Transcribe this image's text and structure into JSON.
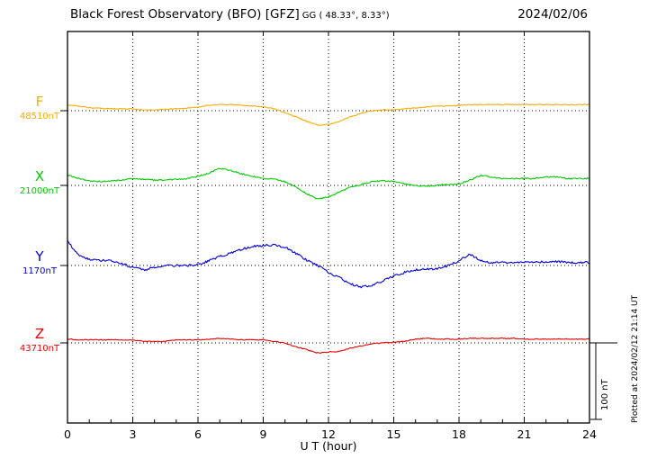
{
  "header": {
    "title": "Black Forest Observatory (BFO)  [GFZ]",
    "subtitle": "GG ( 48.33°,  8.33°)",
    "date": "2024/02/06"
  },
  "footer": {
    "plotted": "Plotted at 2024/02/12 21:14 UT"
  },
  "scalebar": {
    "label": "100 nT",
    "nT": 100
  },
  "chart_data": {
    "type": "line",
    "title": "Black Forest Observatory (BFO) [GFZ] magnetogram 2024/02/06",
    "xlabel": "U T (hour)",
    "xlim": [
      0,
      24
    ],
    "x_ticks": [
      0,
      3,
      6,
      9,
      12,
      15,
      18,
      21,
      24
    ],
    "x_step_hours": 0.5,
    "grid": "dotted vertical gridlines at 3h intervals, dotted horizontal baseline per component",
    "scale_nT_per_div": 100,
    "series": [
      {
        "name": "F",
        "label": "F",
        "baseline_label": "48510nT",
        "baseline_nT": 48510,
        "color": "#ffaa00",
        "offsets_nT": [
          7,
          6,
          4,
          3,
          2.5,
          2.5,
          2.5,
          1,
          1,
          2,
          2.5,
          3.5,
          5,
          7,
          8,
          8,
          7,
          6,
          5,
          2.5,
          -2.5,
          -8,
          -14,
          -19,
          -18,
          -14,
          -8,
          -3.5,
          0,
          1,
          1,
          2.5,
          3.5,
          5,
          6,
          6,
          7,
          8,
          8,
          8,
          8,
          8,
          8,
          8,
          8,
          8,
          8,
          8,
          8
        ]
      },
      {
        "name": "X",
        "label": "X",
        "baseline_label": "21000nT",
        "baseline_nT": 21000,
        "color": "#00cc00",
        "offsets_nT": [
          14,
          9,
          6,
          5,
          6,
          7,
          9,
          8,
          7,
          7,
          8,
          9,
          12,
          16,
          22,
          20,
          15,
          12,
          9,
          8,
          5,
          -2,
          -11,
          -18,
          -15,
          -9,
          -2,
          1,
          5,
          6,
          5,
          2,
          0,
          -1,
          0,
          1,
          2,
          7,
          13,
          11,
          9,
          9,
          9,
          9,
          11,
          11,
          9,
          9,
          9
        ]
      },
      {
        "name": "Y",
        "label": "Y",
        "baseline_label": "1170nT",
        "baseline_nT": 1170,
        "color": "#0000dd",
        "offsets_nT": [
          32,
          14,
          8,
          7,
          6,
          2,
          -2,
          -6,
          -2,
          0,
          0,
          0,
          1,
          6,
          12,
          16,
          21,
          25,
          26,
          27,
          24,
          16,
          7,
          0,
          -9,
          -16,
          -24,
          -28,
          -26,
          -20,
          -14,
          -9,
          -6,
          -5,
          -4,
          0,
          6,
          15,
          6,
          4,
          4,
          4,
          4,
          4,
          5,
          5,
          4,
          4,
          4
        ]
      },
      {
        "name": "Z",
        "label": "Z",
        "baseline_label": "43710nT",
        "baseline_nT": 43710,
        "color": "#ee0000",
        "offsets_nT": [
          5,
          4,
          4,
          4,
          4,
          4,
          4,
          2,
          2,
          2,
          4,
          4,
          4,
          5,
          6,
          5,
          4,
          4,
          4,
          2,
          0,
          -5,
          -9,
          -13,
          -12,
          -11,
          -7,
          -4,
          -1,
          0,
          1,
          2,
          5,
          6,
          5,
          5,
          5,
          6,
          6,
          6,
          6,
          6,
          5,
          5,
          5,
          5,
          5,
          5,
          5
        ]
      }
    ]
  }
}
